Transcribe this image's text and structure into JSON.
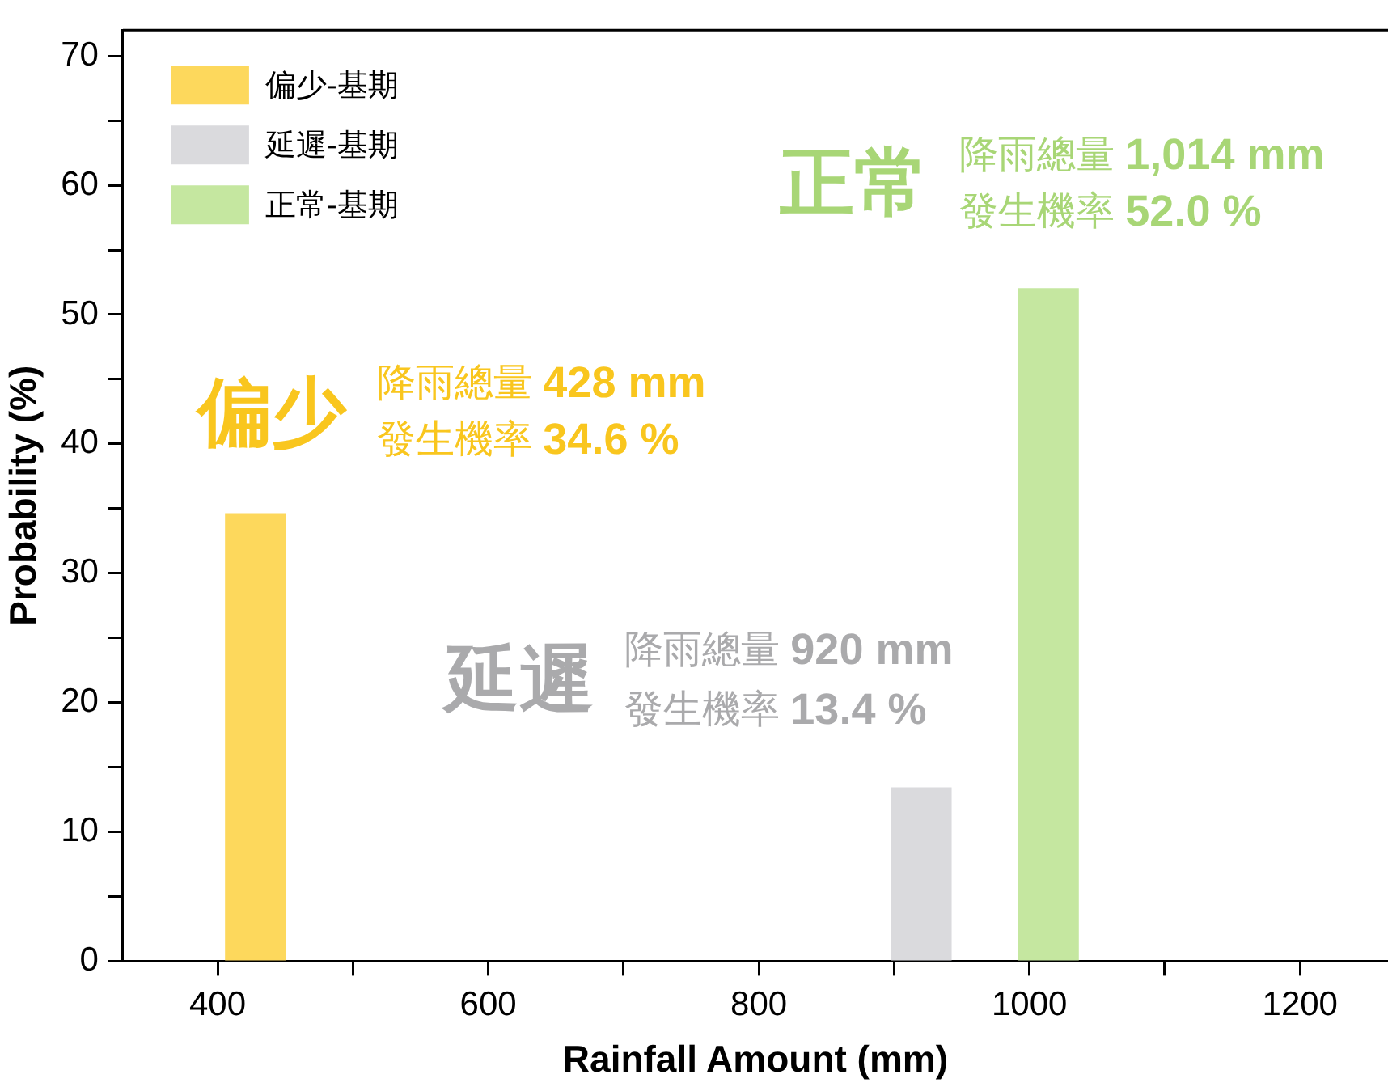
{
  "chart_data": {
    "type": "bar",
    "xlabel": "Rainfall Amount (mm)",
    "ylabel": "Probability (%)",
    "series": [
      {
        "name": "偏少-基期",
        "color": "#fdd85c",
        "x": [
          428
        ],
        "values": [
          34.6
        ]
      },
      {
        "name": "延遲-基期",
        "color": "#dadadd",
        "x": [
          920
        ],
        "values": [
          13.4
        ]
      },
      {
        "name": "正常-基期",
        "color": "#c5e7a0",
        "x": [
          1014
        ],
        "values": [
          52.0
        ]
      }
    ],
    "xlim": [
      330,
      1265
    ],
    "xticks": [
      400,
      {
        "value": 500,
        "label": null
      },
      600,
      {
        "value": 700,
        "label": null
      },
      800,
      {
        "value": 900,
        "label": null
      },
      1000,
      {
        "value": 1100,
        "label": null
      },
      1200
    ],
    "ylim": [
      0,
      72
    ],
    "yticks": [
      0,
      {
        "value": 5,
        "label": null
      },
      10,
      {
        "value": 15,
        "label": null
      },
      20,
      {
        "value": 25,
        "label": null
      },
      30,
      {
        "value": 35,
        "label": null
      },
      40,
      {
        "value": 45,
        "label": null
      },
      50,
      {
        "value": 55,
        "label": null
      },
      60,
      {
        "value": 65,
        "label": null
      },
      70
    ],
    "legend": "top left",
    "annotations": [
      "偏少",
      "降雨總量 428 mm",
      "發生機率 34.6 %",
      "延遲",
      "降雨總量 920 mm",
      "發生機率 13.4 %",
      "正常",
      "降雨總量 1,014 mm",
      "發生機率 52.0 %"
    ]
  }
}
